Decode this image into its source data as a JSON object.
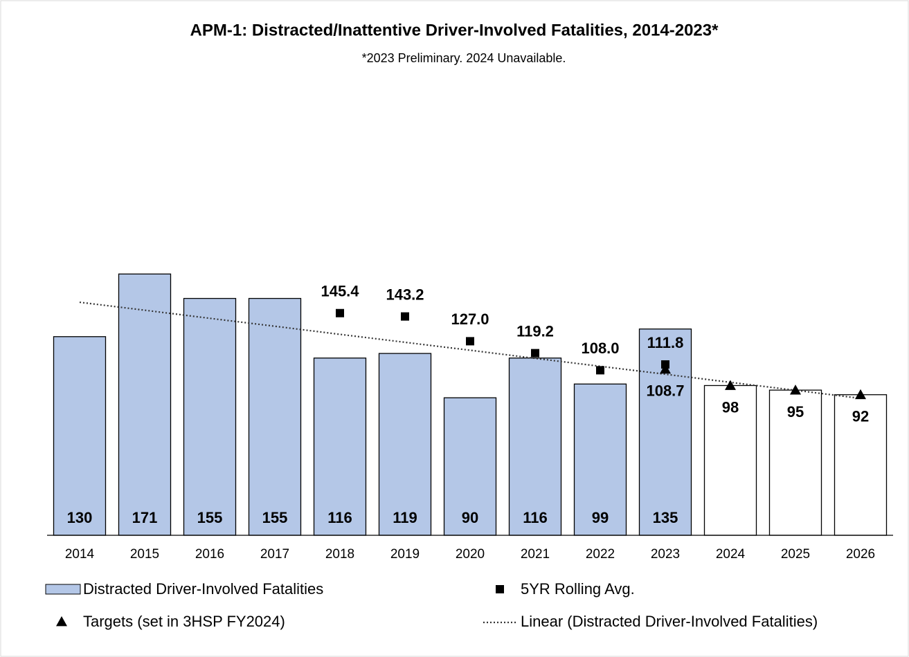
{
  "chart_data": {
    "type": "bar",
    "title": "APM-1: Distracted/Inattentive Driver-Involved Fatalities, 2014-2023*",
    "subtitle": "*2023 Preliminary. 2024 Unavailable.",
    "categories": [
      "2014",
      "2015",
      "2016",
      "2017",
      "2018",
      "2019",
      "2020",
      "2021",
      "2022",
      "2023",
      "2024",
      "2025",
      "2026"
    ],
    "ylim": [
      0,
      296
    ],
    "series": [
      {
        "name": "Distracted Driver-Involved Fatalities",
        "type": "bar",
        "color": "#b4c7e7",
        "values": [
          130,
          171,
          155,
          155,
          116,
          119,
          90,
          116,
          99,
          135,
          null,
          null,
          null
        ]
      },
      {
        "name": "5YR Rolling Avg.",
        "type": "square",
        "color": "#000000",
        "values": [
          null,
          null,
          null,
          null,
          145.4,
          143.2,
          127.0,
          119.2,
          108.0,
          111.8,
          null,
          null,
          null
        ],
        "value_labels": [
          null,
          null,
          null,
          null,
          "145.4",
          "143.2",
          "127.0",
          "119.2",
          "108.0",
          "111.8",
          null,
          null,
          null
        ]
      },
      {
        "name": "Targets (set in 3HSP FY2024)",
        "type": "triangle",
        "color": "#000000",
        "values": [
          null,
          null,
          null,
          null,
          null,
          null,
          null,
          null,
          null,
          108.7,
          98,
          95,
          92
        ]
      },
      {
        "name": "Linear (Distracted Driver-Involved Fatalities)",
        "type": "trend",
        "color": "#333333",
        "values": [
          152.5,
          147.3,
          142.0,
          136.8,
          131.5,
          126.3,
          121.1,
          115.8,
          110.6,
          105.4,
          100.1,
          94.9,
          89.6
        ]
      }
    ]
  }
}
